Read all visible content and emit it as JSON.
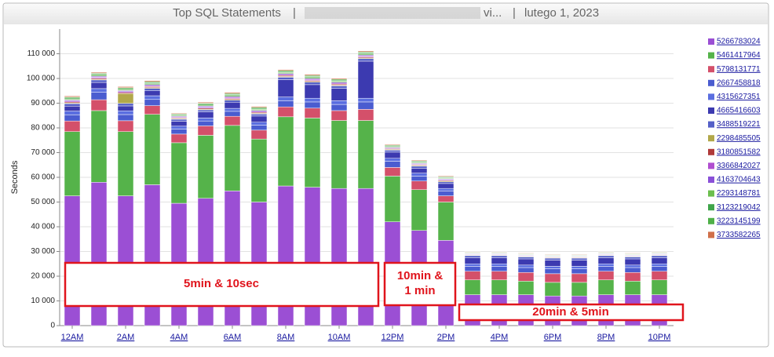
{
  "chart_data": {
    "type": "stacked_bar",
    "title_parts": [
      "Top SQL Statements",
      "|",
      "vi...",
      "|",
      "lutego 1, 2023"
    ],
    "y_label": "Seconds",
    "categories": [
      "12AM",
      null,
      "2AM",
      null,
      "4AM",
      null,
      "6AM",
      null,
      "8AM",
      null,
      "10AM",
      null,
      "12PM",
      null,
      "2PM",
      null,
      "4PM",
      null,
      "6PM",
      null,
      "8PM",
      null,
      "10PM"
    ],
    "ylim": [
      0,
      120000
    ],
    "yticks": [
      0,
      {
        "value": 10000,
        "label": "10 000"
      },
      {
        "value": 20000,
        "label": "20 000"
      },
      {
        "value": 30000,
        "label": "30 000"
      },
      {
        "value": 40000,
        "label": "40 000"
      },
      {
        "value": 50000,
        "label": "50 000"
      },
      {
        "value": 60000,
        "label": "60 000"
      },
      {
        "value": 70000,
        "label": "70 000"
      },
      {
        "value": 80000,
        "label": "80 000"
      },
      {
        "value": 90000,
        "label": "90 000"
      },
      {
        "value": 100000,
        "label": "100 000"
      },
      {
        "value": 110000,
        "label": "110 000"
      }
    ],
    "grid": true,
    "series": [
      {
        "name": "5266783024",
        "color": "#9b4fd4",
        "values": [
          52500,
          58000,
          52500,
          57000,
          49500,
          51500,
          54500,
          50000,
          56500,
          56000,
          55500,
          55500,
          42000,
          38500,
          34500,
          12500,
          12500,
          12500,
          12000,
          12000,
          12500,
          12500,
          12500
        ]
      },
      {
        "name": "5461417964",
        "color": "#55b34a",
        "values": [
          26000,
          29000,
          26000,
          28500,
          24500,
          25500,
          26500,
          25500,
          28000,
          28000,
          27500,
          27500,
          18500,
          16500,
          15500,
          6000,
          6000,
          5500,
          5500,
          5500,
          6000,
          5500,
          6000
        ]
      },
      {
        "name": "5798131771",
        "color": "#d4506a",
        "values": [
          4300,
          4400,
          4400,
          3500,
          3500,
          3800,
          3700,
          3600,
          4000,
          4000,
          4000,
          4500,
          3500,
          3500,
          2500,
          3500,
          3500,
          3500,
          3500,
          3500,
          3500,
          3500,
          3500
        ]
      },
      {
        "name": "2667458818",
        "color": "#4a5cd0",
        "values": [
          2500,
          3000,
          2500,
          2500,
          2000,
          2000,
          2000,
          2000,
          2500,
          2500,
          2500,
          3000,
          2500,
          2000,
          2000,
          2000,
          2000,
          2000,
          2000,
          2000,
          2000,
          2000,
          2000
        ]
      },
      {
        "name": "4315627351",
        "color": "#5a6ee0",
        "values": [
          1500,
          1500,
          1500,
          1500,
          1200,
          1200,
          1200,
          1200,
          1500,
          1500,
          1500,
          1500,
          1200,
          1200,
          1000,
          1000,
          1000,
          1000,
          1000,
          1000,
          1000,
          1000,
          1000
        ]
      },
      {
        "name": "4665416603",
        "color": "#3c3ab0",
        "values": [
          2000,
          2500,
          2000,
          2000,
          2000,
          2500,
          2500,
          2500,
          7000,
          5500,
          5000,
          15000,
          2500,
          2000,
          2000,
          2500,
          2500,
          2500,
          2500,
          2500,
          2500,
          2500,
          2500
        ]
      },
      {
        "name": "3488519221",
        "color": "#5560c8",
        "values": [
          1000,
          1000,
          1000,
          1000,
          800,
          800,
          800,
          800,
          1000,
          1000,
          1000,
          1000,
          800,
          800,
          700,
          800,
          800,
          800,
          800,
          800,
          800,
          800,
          800
        ]
      },
      {
        "name": "2298485505",
        "color": "#b2a84a",
        "values": [
          300,
          300,
          4000,
          300,
          300,
          300,
          300,
          300,
          300,
          300,
          300,
          300,
          300,
          300,
          300,
          200,
          200,
          200,
          200,
          200,
          200,
          200,
          200
        ]
      },
      {
        "name": "3180851582",
        "color": "#b03a3a",
        "values": [
          400,
          400,
          400,
          400,
          300,
          400,
          400,
          400,
          400,
          400,
          400,
          400,
          300,
          300,
          300,
          200,
          200,
          200,
          200,
          200,
          200,
          200,
          200
        ]
      },
      {
        "name": "3366842027",
        "color": "#b04ed0",
        "values": [
          400,
          400,
          400,
          400,
          300,
          400,
          400,
          400,
          400,
          400,
          400,
          400,
          300,
          300,
          300,
          200,
          200,
          200,
          200,
          200,
          200,
          200,
          200
        ]
      },
      {
        "name": "4163704643",
        "color": "#8a50d8",
        "values": [
          400,
          400,
          400,
          400,
          300,
          400,
          400,
          400,
          400,
          400,
          400,
          400,
          300,
          300,
          300,
          200,
          200,
          200,
          200,
          200,
          200,
          200,
          200
        ]
      },
      {
        "name": "2293148781",
        "color": "#6cbf4e",
        "values": [
          400,
          400,
          400,
          400,
          300,
          400,
          400,
          400,
          400,
          400,
          400,
          400,
          300,
          300,
          300,
          200,
          200,
          200,
          200,
          200,
          200,
          200,
          200
        ]
      },
      {
        "name": "3123219042",
        "color": "#3fa54a",
        "values": [
          400,
          400,
          400,
          400,
          300,
          400,
          400,
          400,
          400,
          400,
          400,
          400,
          300,
          300,
          300,
          200,
          200,
          200,
          200,
          200,
          200,
          200,
          200
        ]
      },
      {
        "name": "3223145199",
        "color": "#4fb048",
        "values": [
          400,
          400,
          400,
          400,
          300,
          400,
          400,
          400,
          400,
          400,
          400,
          400,
          300,
          300,
          300,
          200,
          200,
          200,
          200,
          200,
          200,
          200,
          200
        ]
      },
      {
        "name": "3733582265",
        "color": "#d0704a",
        "values": [
          400,
          400,
          400,
          400,
          300,
          400,
          400,
          400,
          400,
          400,
          400,
          400,
          300,
          300,
          300,
          200,
          200,
          200,
          200,
          200,
          200,
          200,
          200
        ]
      }
    ],
    "annotations": [
      "5min & 10sec",
      "10min & 1 min",
      "20min & 5min"
    ]
  }
}
